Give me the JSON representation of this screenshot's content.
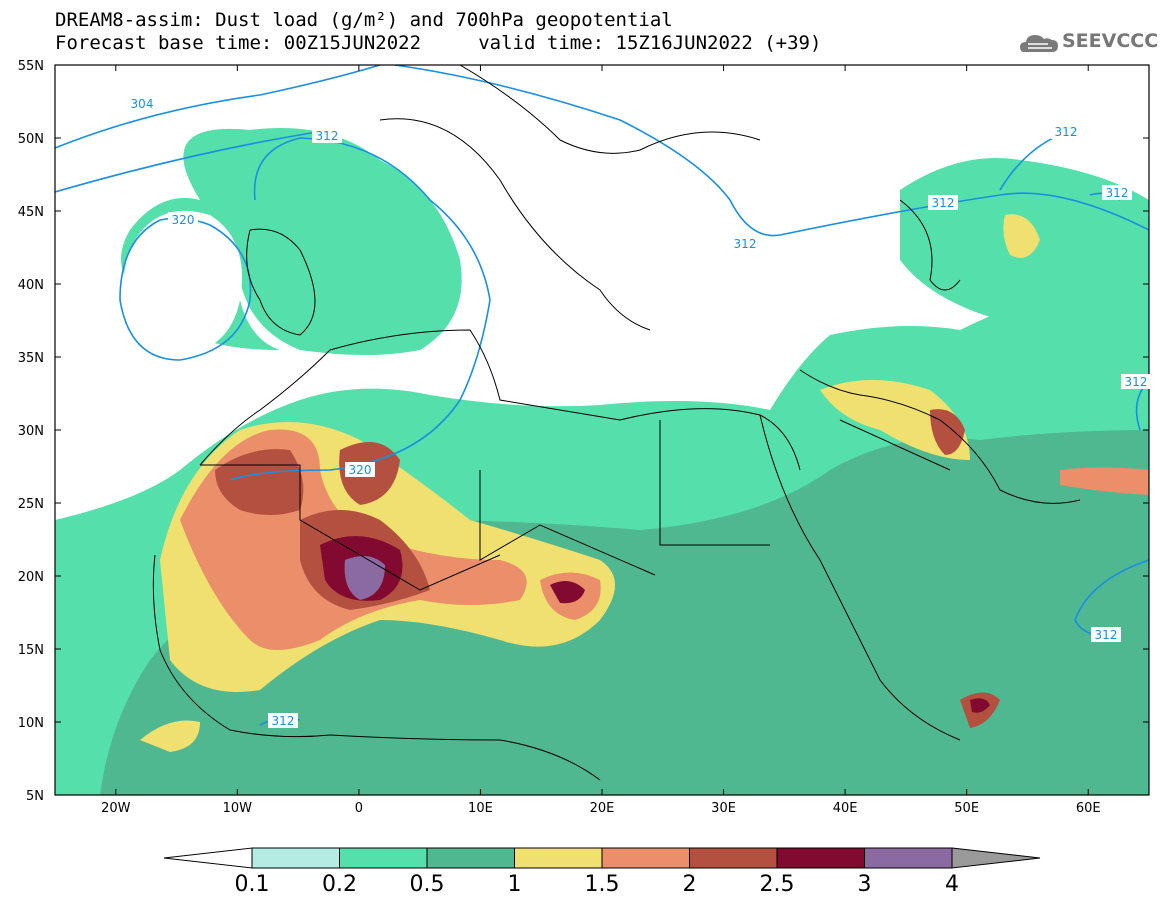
{
  "title": {
    "line1": "DREAM8-assim: Dust load (g/m²) and 700hPa geopotential",
    "line2": "Forecast base time: 00Z15JUN2022     valid time: 15Z16JUN2022 (+39)"
  },
  "logo": {
    "text": "SEEVCCC",
    "icon": "cloud-icon"
  },
  "map": {
    "lon_range": [
      -25,
      65
    ],
    "lat_range": [
      5,
      55
    ],
    "lat_labels": [
      "55N",
      "50N",
      "45N",
      "40N",
      "35N",
      "30N",
      "25N",
      "20N",
      "15N",
      "10N",
      "5N"
    ],
    "lon_labels": [
      "20W",
      "10W",
      "0",
      "10E",
      "20E",
      "30E",
      "40E",
      "50E",
      "60E"
    ],
    "contour_labels": [
      "304",
      "312",
      "320",
      "312",
      "320",
      "312",
      "312",
      "312",
      "312",
      "312",
      "312"
    ]
  },
  "colorbar": {
    "labels": [
      "0.1",
      "0.2",
      "0.5",
      "1",
      "1.5",
      "2",
      "2.5",
      "3",
      "4"
    ],
    "colors": [
      "#ffffff",
      "#b4ece4",
      "#55dfab",
      "#50b890",
      "#f0e070",
      "#ea8f6a",
      "#b45040",
      "#820a30",
      "#8a6aa0",
      "#9a9a9a"
    ]
  }
}
